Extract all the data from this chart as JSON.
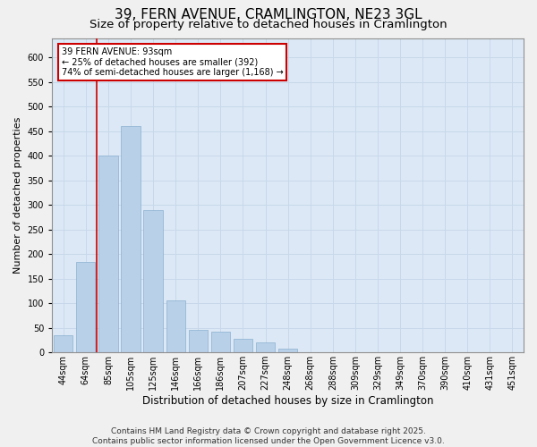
{
  "title": "39, FERN AVENUE, CRAMLINGTON, NE23 3GL",
  "subtitle": "Size of property relative to detached houses in Cramlington",
  "xlabel": "Distribution of detached houses by size in Cramlington",
  "ylabel": "Number of detached properties",
  "categories": [
    "44sqm",
    "64sqm",
    "85sqm",
    "105sqm",
    "125sqm",
    "146sqm",
    "166sqm",
    "186sqm",
    "207sqm",
    "227sqm",
    "248sqm",
    "268sqm",
    "288sqm",
    "309sqm",
    "329sqm",
    "349sqm",
    "370sqm",
    "390sqm",
    "410sqm",
    "431sqm",
    "451sqm"
  ],
  "values": [
    35,
    185,
    400,
    460,
    290,
    105,
    45,
    43,
    27,
    20,
    7,
    1,
    0,
    0,
    0,
    1,
    0,
    0,
    0,
    1,
    1
  ],
  "bar_color": "#b8d0e8",
  "bar_edge_color": "#8ab0d0",
  "grid_color": "#c8d8ea",
  "background_color": "#dce8f5",
  "fig_background": "#f0f0f0",
  "vline_color": "#cc0000",
  "vline_pos": 1.5,
  "annotation_text": "39 FERN AVENUE: 93sqm\n← 25% of detached houses are smaller (392)\n74% of semi-detached houses are larger (1,168) →",
  "annotation_box_color": "#ffffff",
  "annotation_box_edge": "#cc0000",
  "ylim": [
    0,
    640
  ],
  "yticks": [
    0,
    50,
    100,
    150,
    200,
    250,
    300,
    350,
    400,
    450,
    500,
    550,
    600
  ],
  "footer": "Contains HM Land Registry data © Crown copyright and database right 2025.\nContains public sector information licensed under the Open Government Licence v3.0.",
  "title_fontsize": 11,
  "subtitle_fontsize": 9.5,
  "xlabel_fontsize": 8.5,
  "ylabel_fontsize": 8,
  "tick_fontsize": 7,
  "annotation_fontsize": 7,
  "footer_fontsize": 6.5
}
